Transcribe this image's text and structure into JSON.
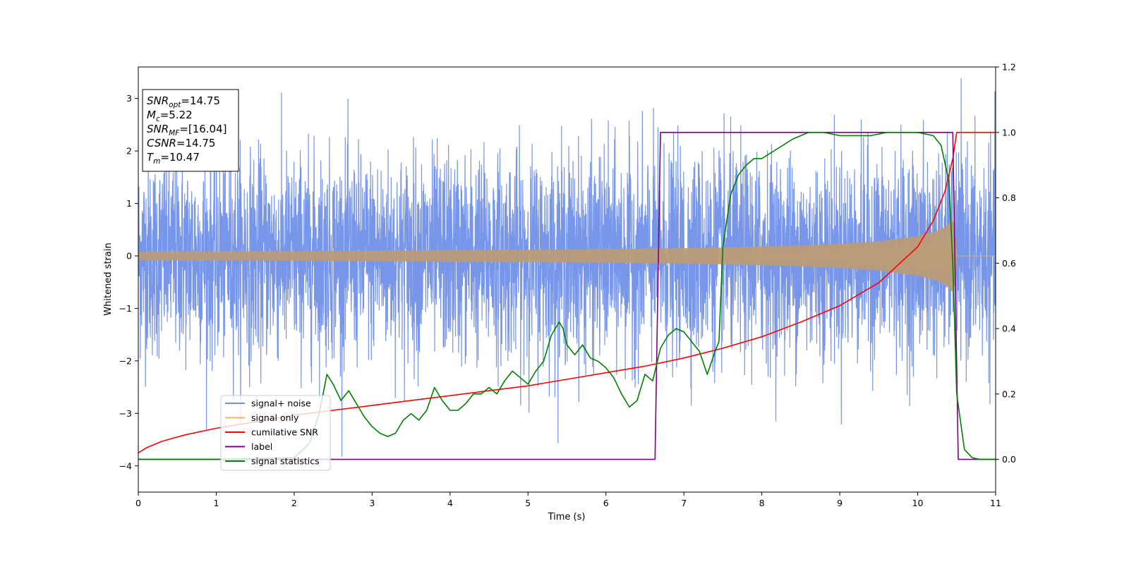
{
  "chart_data": {
    "type": "line",
    "xlabel": "Time (s)",
    "ylabel": "Whitened strain",
    "xlim": [
      0,
      11
    ],
    "ylim_left": [
      -4.5,
      3.6
    ],
    "ylim_right": [
      -0.1,
      1.2
    ],
    "x_ticks": [
      "0",
      "1",
      "2",
      "3",
      "4",
      "5",
      "6",
      "7",
      "8",
      "9",
      "10",
      "11"
    ],
    "y_ticks_left": [
      "−4",
      "−3",
      "−2",
      "−1",
      "0",
      "1",
      "2",
      "3"
    ],
    "y_ticks_right": [
      "0.0",
      "0.2",
      "0.4",
      "0.6",
      "0.8",
      "1.0",
      "1.2"
    ],
    "grid": false,
    "legend_position": "lower-left",
    "annotation": {
      "lines": [
        {
          "sym": "SNR",
          "sub": "opt",
          "val": "=14.75"
        },
        {
          "sym": "M",
          "sub": "c",
          "val": "=5.22"
        },
        {
          "sym": "SNR",
          "sub": "MF",
          "val": "=[16.04]"
        },
        {
          "sym": "CSNR",
          "sub": "",
          "val": "=14.75"
        },
        {
          "sym": "T",
          "sub": "m",
          "val": "=10.47"
        }
      ]
    },
    "series": [
      {
        "name": "signal+ noise",
        "axis": "left",
        "color": "#7090e8",
        "kind": "noise",
        "description_values": {
          "std": 0.95,
          "min": -4.15,
          "max": 3.42,
          "spike_times": [
            7.65,
            8.45,
            9.3,
            10.95
          ]
        }
      },
      {
        "name": "signal only",
        "axis": "left",
        "color": "#e8b070",
        "kind": "chirp",
        "x": [
          0,
          1,
          2,
          3,
          4,
          5,
          6,
          6.7,
          7.5,
          8,
          8.5,
          9,
          9.5,
          10,
          10.2,
          10.35,
          10.42,
          10.47,
          10.5,
          11
        ],
        "amplitude": [
          0.08,
          0.085,
          0.09,
          0.1,
          0.11,
          0.12,
          0.13,
          0.14,
          0.16,
          0.18,
          0.2,
          0.23,
          0.28,
          0.38,
          0.45,
          0.55,
          0.65,
          0.72,
          0.0,
          0.0
        ]
      },
      {
        "name": "cumilative SNR",
        "axis": "right",
        "color": "#ff0000",
        "x": [
          0,
          0.1,
          0.3,
          0.6,
          1,
          1.5,
          2,
          2.5,
          3,
          3.5,
          4,
          4.5,
          5,
          5.5,
          6,
          6.5,
          7,
          7.5,
          8,
          8.5,
          9,
          9.5,
          10,
          10.2,
          10.35,
          10.45,
          10.5,
          11
        ],
        "y": [
          0.02,
          0.035,
          0.055,
          0.075,
          0.095,
          0.115,
          0.135,
          0.15,
          0.165,
          0.18,
          0.195,
          0.21,
          0.225,
          0.245,
          0.265,
          0.285,
          0.31,
          0.34,
          0.375,
          0.42,
          0.47,
          0.54,
          0.65,
          0.73,
          0.82,
          0.92,
          1.0,
          1.0
        ]
      },
      {
        "name": "label",
        "axis": "right",
        "color": "#800080",
        "x": [
          0,
          6.63,
          6.7,
          10.45,
          10.52,
          11
        ],
        "y": [
          0.0,
          0.0,
          1.0,
          1.0,
          0.0,
          0.0
        ]
      },
      {
        "name": "signal statistics",
        "axis": "right",
        "color": "#008000",
        "x": [
          0,
          1,
          2,
          2.2,
          2.32,
          2.42,
          2.5,
          2.6,
          2.7,
          2.8,
          2.9,
          3.0,
          3.1,
          3.2,
          3.3,
          3.4,
          3.5,
          3.6,
          3.7,
          3.8,
          3.9,
          4.0,
          4.1,
          4.2,
          4.3,
          4.4,
          4.5,
          4.6,
          4.7,
          4.8,
          4.9,
          5.0,
          5.1,
          5.2,
          5.3,
          5.4,
          5.45,
          5.5,
          5.6,
          5.7,
          5.8,
          5.9,
          6.0,
          6.1,
          6.2,
          6.3,
          6.4,
          6.5,
          6.6,
          6.7,
          6.8,
          6.9,
          7.0,
          7.1,
          7.2,
          7.3,
          7.4,
          7.45,
          7.5,
          7.6,
          7.7,
          7.8,
          7.9,
          8.0,
          8.2,
          8.4,
          8.6,
          8.8,
          9.0,
          9.2,
          9.4,
          9.6,
          9.8,
          10.0,
          10.2,
          10.3,
          10.4,
          10.45,
          10.5,
          10.6,
          10.7,
          10.8,
          11
        ],
        "y": [
          0.0,
          0.0,
          0.005,
          0.05,
          0.14,
          0.26,
          0.23,
          0.18,
          0.21,
          0.17,
          0.13,
          0.1,
          0.08,
          0.07,
          0.08,
          0.12,
          0.14,
          0.12,
          0.15,
          0.22,
          0.18,
          0.15,
          0.15,
          0.17,
          0.2,
          0.2,
          0.22,
          0.2,
          0.24,
          0.27,
          0.25,
          0.23,
          0.27,
          0.3,
          0.38,
          0.42,
          0.4,
          0.35,
          0.32,
          0.35,
          0.31,
          0.3,
          0.28,
          0.25,
          0.2,
          0.16,
          0.18,
          0.26,
          0.24,
          0.34,
          0.38,
          0.4,
          0.39,
          0.36,
          0.33,
          0.26,
          0.33,
          0.36,
          0.65,
          0.81,
          0.87,
          0.9,
          0.92,
          0.92,
          0.95,
          0.98,
          1.0,
          1.0,
          0.99,
          0.99,
          0.99,
          1.0,
          1.0,
          1.0,
          0.99,
          0.96,
          0.85,
          0.6,
          0.2,
          0.03,
          0.005,
          0.0,
          0.0
        ]
      }
    ]
  }
}
